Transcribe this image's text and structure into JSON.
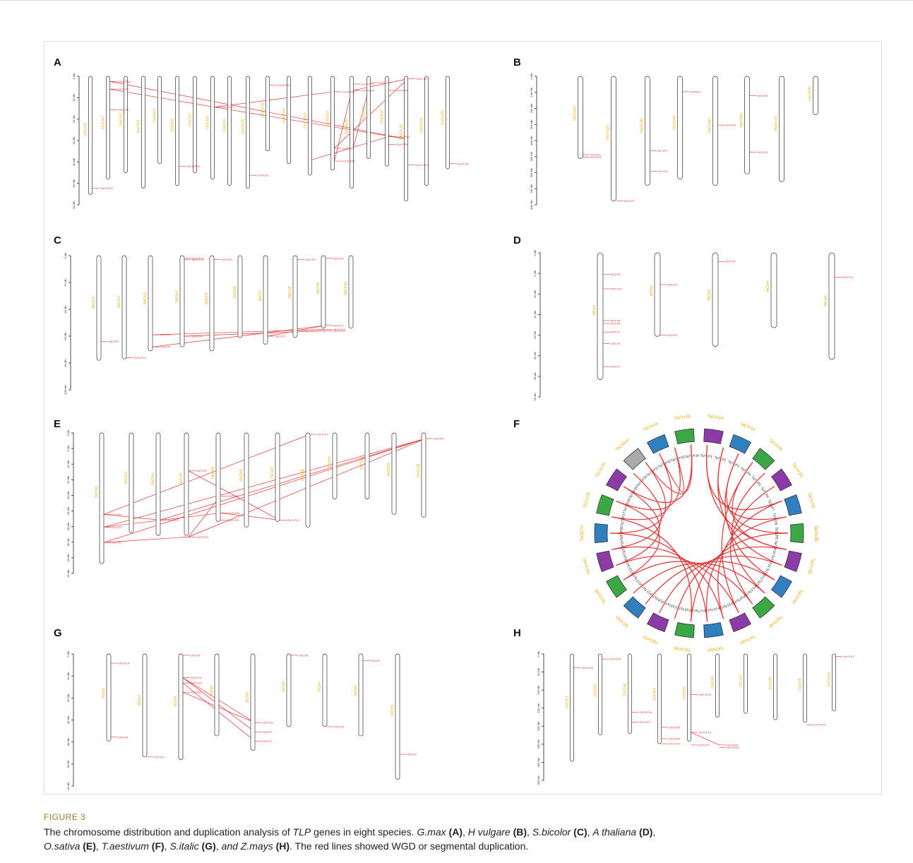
{
  "figure_label": "FIGURE 3",
  "caption": {
    "t1": "The chromosome distribution and duplication analysis of ",
    "t2": "TLP",
    "t3": " genes in eight species. ",
    "sp_a": "G.max",
    "lab_a": " (A)",
    "sep_a": ", ",
    "sp_b": "H vulgare",
    "lab_b": " (B)",
    "sep_b": ", ",
    "sp_c": "S.bicolor",
    "lab_c": " (C)",
    "sep_c": ", ",
    "sp_d": "A thaliana",
    "lab_d": " (D)",
    "sep_d": ",",
    "sp_e": "O.sativa",
    "lab_e": " (E)",
    "sep_e": ", ",
    "sp_f": "T.aestivum",
    "lab_f": " (F)",
    "sep_f": ", ",
    "sp_g": "S.italic",
    "lab_g": " (G)",
    "sep_g": ", ",
    "sp_h": "and Z.mays",
    "lab_h": " (H)",
    "t4": ". The red lines showed WGD or segmental duplication."
  },
  "colors": {
    "duplication": "#e03030",
    "chromosome_label": "#f0a800",
    "circos_green": "#3aa845",
    "circos_blue": "#2f7fc1",
    "circos_purple": "#8b3aa8",
    "circos_gray": "#aaaaaa"
  },
  "panels": {
    "A": {
      "label": "A",
      "axis_unit": "Mb",
      "axis_ticks": [
        "0 Mb",
        "10 Mb",
        "20 Mb",
        "30 Mb",
        "40 Mb",
        "50 Mb",
        "60 Mb"
      ],
      "chromosomes": [
        "GmChr1",
        "GmChr2",
        "GmChr3",
        "GmChr4",
        "GmChr5",
        "GmChr6",
        "GmChr7",
        "GmChr8",
        "GmChr9",
        "GmChr10",
        "GmChr11",
        "GmChr12",
        "GmChr13",
        "GmChr14",
        "GmChr15",
        "GmChr16",
        "GmChr17",
        "GmChr18",
        "GmChr19",
        "GmChr20"
      ],
      "genes": [
        "GmTLP20",
        "GmTLP10",
        "GmTLP7",
        "GmTLP5",
        "GmTLP13",
        "GmTLP4",
        "GmTLP1",
        "GmTLP11",
        "GmTLP16",
        "GmTLP15",
        "GmTLP3",
        "GmTLP19",
        "GmTLP18",
        "GmTLP17",
        "GmTLP2",
        "GmTLP12",
        "GmTLP6",
        "GmTLP8",
        "GmTLP14",
        "GmTLP9"
      ]
    },
    "B": {
      "label": "B",
      "axis_ticks": [
        "0 Mb",
        "100 Mb",
        "200 Mb",
        "300 Mb",
        "400 Mb",
        "500 Mb",
        "600 Mb",
        "700 Mb",
        "800 Mb"
      ],
      "chromosomes": [
        "HvChr1H",
        "HvChr2H",
        "HvChr3H",
        "HvChr4H",
        "HvChr5H",
        "HvChr6H",
        "HvChr7H",
        "HvChrUn"
      ],
      "genes": [
        "HvTLP1",
        "HvTLP5",
        "HvTLP4",
        "HvTLP7",
        "HvTLP2",
        "HvTLP3",
        "HvTLP6",
        "HvTLP8",
        "HvTLP9"
      ]
    },
    "C": {
      "label": "C",
      "axis_ticks": [
        "0 Mb",
        "20 Mb",
        "40 Mb",
        "60 Mb",
        "80 Mb",
        "100 Mb"
      ],
      "chromosomes": [
        "SbChr1",
        "SbChr2",
        "SbChr3",
        "SbChr4",
        "SbChr5",
        "SbChr6",
        "SbChr7",
        "SbChr8",
        "SbChr9",
        "SbChr10"
      ],
      "genes": [
        "SbTLP2",
        "SbTLP11",
        "SbTLP3",
        "SbTLP5",
        "SbTLP14",
        "SbTLP13",
        "SbTLP4",
        "SbTLP6",
        "SbTLP7",
        "SbTLP8",
        "SbTLP9",
        "SbTLP1",
        "SbTLP10",
        "SbTLP12"
      ]
    },
    "D": {
      "label": "D",
      "axis_ticks": [
        "0 Mb",
        "5 Mb",
        "10 Mb",
        "15 Mb",
        "20 Mb",
        "25 Mb",
        "30 Mb",
        "35 Mb"
      ],
      "chromosomes": [
        "AtChr1",
        "AtChr2",
        "AtChr3",
        "AtChr4",
        "AtChr5"
      ],
      "genes": [
        "AtTLP9",
        "AtTLP10",
        "AtTLP6",
        "AtTLP8",
        "AtTLP7",
        "AtTLP4",
        "AtTLP1",
        "AtTLP2",
        "AtTLP3",
        "AtTLP5",
        "AtTLP11"
      ]
    },
    "E": {
      "label": "E",
      "axis_ticks": [
        "0 Mb",
        "5 Mb",
        "10 Mb",
        "15 Mb",
        "20 Mb",
        "25 Mb",
        "30 Mb",
        "35 Mb",
        "40 Mb",
        "45 Mb"
      ],
      "chromosomes": [
        "OsChr1",
        "OsChr2",
        "OsChr3",
        "OsChr4",
        "OsChr5",
        "OsChr6",
        "OsChr7",
        "OsChr8",
        "OsChr9",
        "OsChr10",
        "OsChr11",
        "OsChr12"
      ],
      "genes": [
        "OsTLP4",
        "OsTLP3",
        "OsTLP1",
        "OsTLP5",
        "OsTLP6",
        "OsTLP10",
        "OsTLP2",
        "OsTLP11",
        "OsTLP8",
        "OsTLP12",
        "OsTLP7",
        "OsTLP9"
      ]
    },
    "F": {
      "label": "F",
      "chromosomes": [
        "TaChr1D",
        "TaChr2A",
        "TaChr2B",
        "TaChr2D",
        "TaChr3A",
        "TaChr3B",
        "TaChr3D",
        "TaChr4A",
        "TaChr4B",
        "TaChr4D",
        "TaChr5A",
        "TaChr5B",
        "TaChr5D",
        "TaChr6A",
        "TaChr6B",
        "TaChr6D",
        "TaChr7A",
        "TaChr7B",
        "TaChr7D",
        "TaChrUn",
        "TaChr1A",
        "TaChr1B"
      ],
      "genes": [
        "TaTLP1",
        "TaTLP2",
        "TaTLP3",
        "TaTLP4",
        "TaTLP5",
        "TaTLP6",
        "TaTLP7",
        "TaTLP8",
        "TaTLP9",
        "TaTLP10",
        "TaTLP11",
        "TaTLP12",
        "TaTLP13",
        "TaTLP14",
        "TaTLP15",
        "TaTLP16",
        "TaTLP17",
        "TaTLP18",
        "TaTLP19",
        "TaTLP20",
        "TaTLP21",
        "TaTLP22",
        "TaTLP23",
        "TaTLP24",
        "TaTLP25",
        "TaTLP26",
        "TaTLP27",
        "TaTLP28",
        "TaTLP29",
        "TaTLP30",
        "TaTLP31",
        "TaTLP32",
        "TaTLP33",
        "TaTLP34"
      ]
    },
    "G": {
      "label": "G",
      "axis_ticks": [
        "0 Mb",
        "10 Mb",
        "20 Mb",
        "30 Mb",
        "40 Mb",
        "50 Mb",
        "60 Mb"
      ],
      "chromosomes": [
        "SiChr1",
        "SiChr2",
        "SiChr3",
        "SiChr4",
        "SiChr5",
        "SiChr6",
        "SiChr7",
        "SiChr8",
        "SiChr9"
      ],
      "genes": [
        "SiTLP14",
        "SiTLP6",
        "SiTLP4",
        "SiTLP8",
        "SiTLP13",
        "SiTLP10",
        "SiTLP12",
        "SiTLP11",
        "SiTLP7",
        "SiTLP1",
        "SiTLP5",
        "SiTLP3",
        "SiTLP9",
        "SiTLP2"
      ]
    },
    "H": {
      "label": "H",
      "axis_ticks": [
        "0 Mb",
        "50 Mb",
        "100 Mb",
        "150 Mb",
        "200 Mb",
        "250 Mb",
        "300 Mb",
        "350 Mb"
      ],
      "chromosomes": [
        "ZmChr1",
        "ZmChr2",
        "ZmChr3",
        "ZmChr4",
        "ZmChr5",
        "ZmChr6",
        "ZmChr7",
        "ZmChr8",
        "ZmChr9",
        "ZmChr10"
      ],
      "genes": [
        "ZmTLP11",
        "ZmTLP9",
        "ZmTLP14",
        "ZmTLP3",
        "ZmTLP5",
        "ZmTLP6",
        "ZmTLP2",
        "ZmTLP10",
        "ZmTLP13",
        "ZmTLP7",
        "ZmTLP8",
        "ZmTLP12",
        "ZmTLP4",
        "ZmTLP1"
      ]
    }
  }
}
